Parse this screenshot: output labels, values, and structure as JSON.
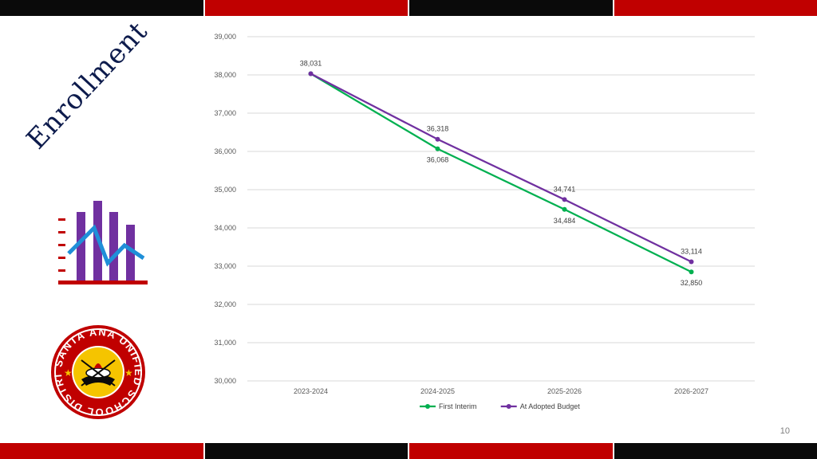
{
  "slide": {
    "title": "Enrollment",
    "page_number": "10"
  },
  "icons": {
    "enrollment_icon": "bar-chart-trend-icon",
    "district_logo": "santa-ana-usd-seal",
    "logo_text": "SANTA ANA UNIFIED SCHOOL DISTRICT"
  },
  "colors": {
    "band_red": "#c00000",
    "band_black": "#0a0a0a",
    "first_interim": "#00b050",
    "adopted_budget": "#7030a0"
  },
  "chart_data": {
    "type": "line",
    "categories": [
      "2023-2024",
      "2024-2025",
      "2025-2026",
      "2026-2027"
    ],
    "series": [
      {
        "name": "First Interim",
        "values": [
          38031,
          36068,
          34484,
          32850
        ],
        "labels": [
          "",
          "36,068",
          "34,484",
          "32,850"
        ],
        "color": "#00b050"
      },
      {
        "name": "At Adopted Budget",
        "values": [
          38031,
          36318,
          34741,
          33114
        ],
        "labels": [
          "38,031",
          "36,318",
          "34,741",
          "33,114"
        ],
        "color": "#7030a0"
      }
    ],
    "y_ticks": [
      "30,000",
      "31,000",
      "32,000",
      "33,000",
      "34,000",
      "35,000",
      "36,000",
      "37,000",
      "38,000",
      "39,000"
    ],
    "ylim": [
      30000,
      39000
    ],
    "title": "",
    "xlabel": "",
    "ylabel": "",
    "grid": true,
    "legend": "bottom"
  }
}
